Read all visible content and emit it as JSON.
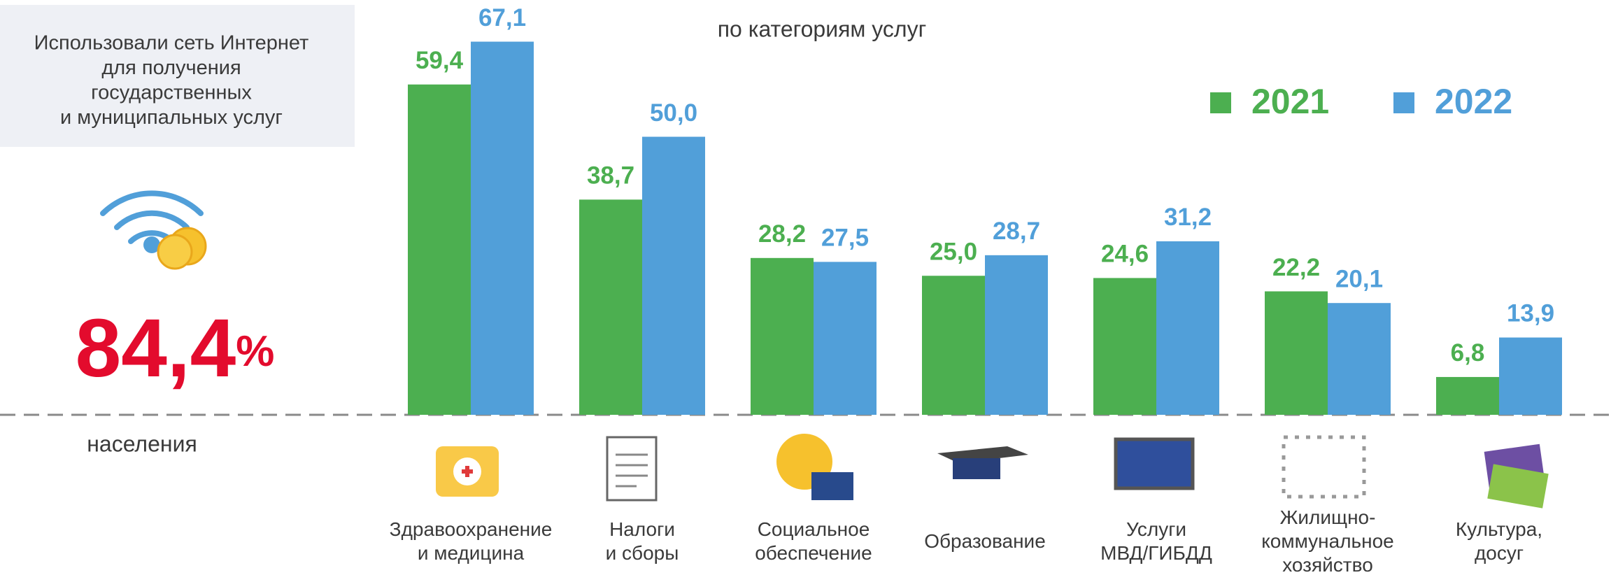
{
  "panel": {
    "lines": [
      "Использовали сеть Интернет",
      "для получения",
      "государственных",
      "и муниципальных услуг"
    ],
    "number": "84,4",
    "unit": "%",
    "footer": "населения"
  },
  "chart_data": {
    "type": "bar",
    "title": "по категориям услуг",
    "categories": [
      "Здравоохранение\nи медицина",
      "Налоги\nи сборы",
      "Социальное\nобеспечение",
      "Образование",
      "Услуги\nМВД/ГИБДД",
      "Жилищно-\nкоммунальное\nхозяйство",
      "Культура,\nдосуг"
    ],
    "series": [
      {
        "name": "2021",
        "color": "#4caf50",
        "values": [
          59.4,
          38.7,
          28.2,
          25.0,
          24.6,
          22.2,
          6.8
        ],
        "value_labels": [
          "59,4",
          "38,7",
          "28,2",
          "25,0",
          "24,6",
          "22,2",
          "6,8"
        ]
      },
      {
        "name": "2022",
        "color": "#519fd9",
        "values": [
          67.1,
          50.0,
          27.5,
          28.7,
          31.2,
          20.1,
          13.9
        ],
        "value_labels": [
          "67,1",
          "50,0",
          "27,5",
          "28,7",
          "31,2",
          "20,1",
          "13,9"
        ]
      }
    ],
    "legend": "top-right"
  }
}
